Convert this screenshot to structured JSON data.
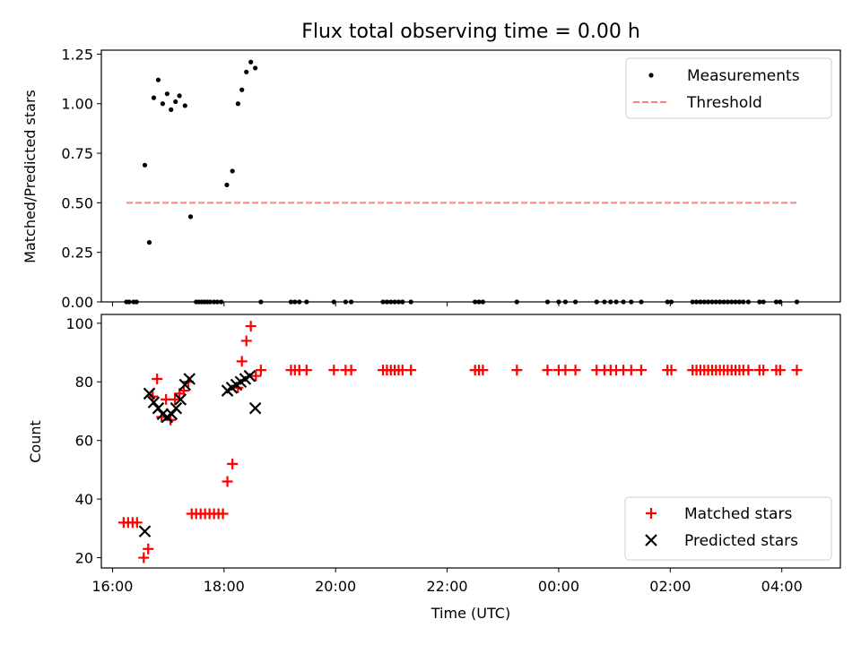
{
  "chart_data": [
    {
      "type": "scatter",
      "title": "Flux total observing time = 0.00 h",
      "xlabel": "",
      "ylabel": "Matched/Predicted stars",
      "xlim": [
        15.8,
        29.05
      ],
      "ylim": [
        0,
        1.27
      ],
      "yticks": [
        0,
        0.25,
        0.5,
        0.75,
        1.0,
        1.25
      ],
      "ytick_labels": [
        "0.00",
        "0.25",
        "0.50",
        "0.75",
        "1.00",
        "1.25"
      ],
      "legend": [
        "Measurements",
        "Threshold"
      ],
      "legend_position": "top-right",
      "colors": {
        "measurements": "#000000",
        "threshold": "#ff8080"
      },
      "threshold": {
        "value": 0.5,
        "x_start": 16.25,
        "x_end": 28.3
      },
      "series": [
        {
          "name": "Measurements",
          "x": [
            16.25,
            16.3,
            16.38,
            16.43,
            16.58,
            16.66,
            16.74,
            16.82,
            16.9,
            16.98,
            17.05,
            17.13,
            17.2,
            17.3,
            17.4,
            17.5,
            17.55,
            17.6,
            17.65,
            17.7,
            17.75,
            17.82,
            17.88,
            17.95,
            18.05,
            18.15,
            18.25,
            18.32,
            18.4,
            18.48,
            18.56,
            18.66,
            19.2,
            19.27,
            19.35,
            19.48,
            19.97,
            20.18,
            20.28,
            20.85,
            20.92,
            20.99,
            21.06,
            21.13,
            21.2,
            21.35,
            22.5,
            22.57,
            22.64,
            23.25,
            23.8,
            24.0,
            24.12,
            24.3,
            24.68,
            24.82,
            24.93,
            25.03,
            25.16,
            25.3,
            25.48,
            25.95,
            26.02,
            26.4,
            26.47,
            26.54,
            26.61,
            26.68,
            26.75,
            26.82,
            26.89,
            26.96,
            27.03,
            27.1,
            27.17,
            27.24,
            27.31,
            27.4,
            27.6,
            27.67,
            27.9,
            27.97,
            28.27
          ],
          "y": [
            0,
            0,
            0,
            0,
            0.69,
            0.3,
            1.03,
            1.12,
            1.0,
            1.05,
            0.97,
            1.01,
            1.04,
            0.99,
            0.43,
            0,
            0,
            0,
            0,
            0,
            0,
            0,
            0,
            0,
            0.59,
            0.66,
            1.0,
            1.07,
            1.16,
            1.21,
            1.18,
            0,
            0,
            0,
            0,
            0,
            0,
            0,
            0,
            0,
            0,
            0,
            0,
            0,
            0,
            0,
            0,
            0,
            0,
            0,
            0,
            0,
            0,
            0,
            0,
            0,
            0,
            0,
            0,
            0,
            0,
            0,
            0,
            0,
            0,
            0,
            0,
            0,
            0,
            0,
            0,
            0,
            0,
            0,
            0,
            0,
            0,
            0,
            0,
            0,
            0,
            0,
            0
          ]
        }
      ]
    },
    {
      "type": "scatter",
      "title": "",
      "xlabel": "Time (UTC)",
      "ylabel": "Count",
      "xlim": [
        15.8,
        29.05
      ],
      "ylim": [
        16.5,
        103
      ],
      "yticks": [
        20,
        40,
        60,
        80,
        100
      ],
      "ytick_labels": [
        "20",
        "40",
        "60",
        "80",
        "100"
      ],
      "xticks": [
        16,
        18,
        20,
        22,
        24,
        26,
        28
      ],
      "xtick_labels": [
        "16:00",
        "18:00",
        "20:00",
        "22:00",
        "00:00",
        "02:00",
        "04:00"
      ],
      "legend": [
        "Matched stars",
        "Predicted stars"
      ],
      "legend_position": "bottom-right",
      "colors": {
        "matched": "#ff0000",
        "predicted": "#000000"
      },
      "series": [
        {
          "name": "Matched stars",
          "x": [
            16.2,
            16.28,
            16.36,
            16.44,
            16.56,
            16.64,
            16.72,
            16.8,
            16.88,
            16.96,
            17.04,
            17.12,
            17.2,
            17.28,
            17.36,
            17.42,
            17.5,
            17.58,
            17.66,
            17.74,
            17.82,
            17.9,
            17.98,
            18.06,
            18.15,
            18.25,
            18.32,
            18.4,
            18.48,
            18.57,
            18.66,
            19.2,
            19.27,
            19.35,
            19.48,
            19.97,
            20.18,
            20.28,
            20.85,
            20.92,
            20.99,
            21.06,
            21.13,
            21.2,
            21.35,
            22.5,
            22.57,
            22.64,
            23.25,
            23.8,
            24.0,
            24.12,
            24.3,
            24.68,
            24.82,
            24.93,
            25.03,
            25.16,
            25.3,
            25.48,
            25.95,
            26.02,
            26.4,
            26.47,
            26.54,
            26.61,
            26.68,
            26.75,
            26.82,
            26.89,
            26.96,
            27.03,
            27.1,
            27.17,
            27.24,
            27.31,
            27.4,
            27.6,
            27.67,
            27.9,
            27.97,
            28.27
          ],
          "y": [
            32,
            32,
            32,
            32,
            20,
            23,
            75,
            81,
            68,
            74,
            67,
            74,
            76,
            77,
            80,
            35,
            35,
            35,
            35,
            35,
            35,
            35,
            35,
            46,
            52,
            78,
            87,
            94,
            99,
            82,
            84,
            84,
            84,
            84,
            84,
            84,
            84,
            84,
            84,
            84,
            84,
            84,
            84,
            84,
            84,
            84,
            84,
            84,
            84,
            84,
            84,
            84,
            84,
            84,
            84,
            84,
            84,
            84,
            84,
            84,
            84,
            84,
            84,
            84,
            84,
            84,
            84,
            84,
            84,
            84,
            84,
            84,
            84,
            84,
            84,
            84,
            84,
            84,
            84,
            84,
            84,
            84
          ]
        },
        {
          "name": "Predicted stars",
          "x": [
            16.58,
            16.66,
            16.74,
            16.82,
            16.9,
            16.98,
            17.06,
            17.14,
            17.22,
            17.3,
            17.38,
            18.06,
            18.14,
            18.22,
            18.3,
            18.38,
            18.46,
            18.56
          ],
          "y": [
            29,
            76,
            73,
            71,
            69,
            68,
            69,
            71,
            74,
            79,
            81,
            77,
            78,
            79,
            80,
            81,
            82,
            71
          ]
        }
      ]
    }
  ]
}
